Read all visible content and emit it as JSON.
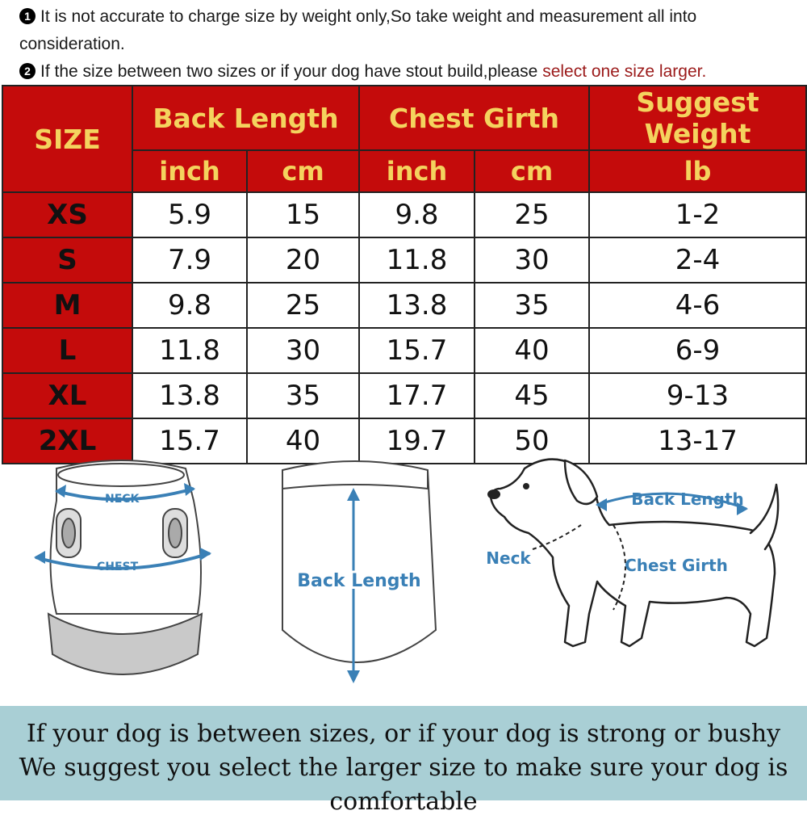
{
  "notes": {
    "note1_num": "1",
    "note1_text": "It is not accurate to charge size by weight only,So take weight and measurement all into",
    "note1_cont": "consideration.",
    "note2_num": "2",
    "note2_text": "If the size between two sizes or if your dog have stout build,please ",
    "note2_highlight": "select one size larger."
  },
  "table": {
    "size_header": "SIZE",
    "back_length": "Back Length",
    "chest_girth": "Chest Girth",
    "suggest_weight": "Suggest Weight",
    "unit_inch": "inch",
    "unit_cm": "cm",
    "unit_lb": "lb",
    "rows": [
      {
        "size": "XS",
        "bl_inch": "5.9",
        "bl_cm": "15",
        "cg_inch": "9.8",
        "cg_cm": "25",
        "weight": "1-2"
      },
      {
        "size": "S",
        "bl_inch": "7.9",
        "bl_cm": "20",
        "cg_inch": "11.8",
        "cg_cm": "30",
        "weight": "2-4"
      },
      {
        "size": "M",
        "bl_inch": "9.8",
        "bl_cm": "25",
        "cg_inch": "13.8",
        "cg_cm": "35",
        "weight": "4-6"
      },
      {
        "size": "L",
        "bl_inch": "11.8",
        "bl_cm": "30",
        "cg_inch": "15.7",
        "cg_cm": "40",
        "weight": "6-9"
      },
      {
        "size": "XL",
        "bl_inch": "13.8",
        "bl_cm": "35",
        "cg_inch": "17.7",
        "cg_cm": "45",
        "weight": "9-13"
      },
      {
        "size": "2XL",
        "bl_inch": "15.7",
        "bl_cm": "40",
        "cg_inch": "19.7",
        "cg_cm": "50",
        "weight": "13-17"
      }
    ]
  },
  "diagrams": {
    "neck_label": "NECK",
    "chest_label": "CHEST",
    "back_length_label": "Back Length",
    "dog_back_length": "Back Length",
    "dog_neck": "Neck",
    "dog_chest_girth": "Chest Girth"
  },
  "footer": {
    "line1": "If your dog is between sizes, or if your dog is strong or bushy",
    "line2": "We suggest you select the larger size to make sure  your dog is comfortable"
  },
  "colors": {
    "header_red": "#c40b0b",
    "header_text": "#f4d35e",
    "highlight": "#9b1a1a",
    "diagram_blue": "#3a80b6",
    "footer_bg": "#a9cfd5"
  }
}
